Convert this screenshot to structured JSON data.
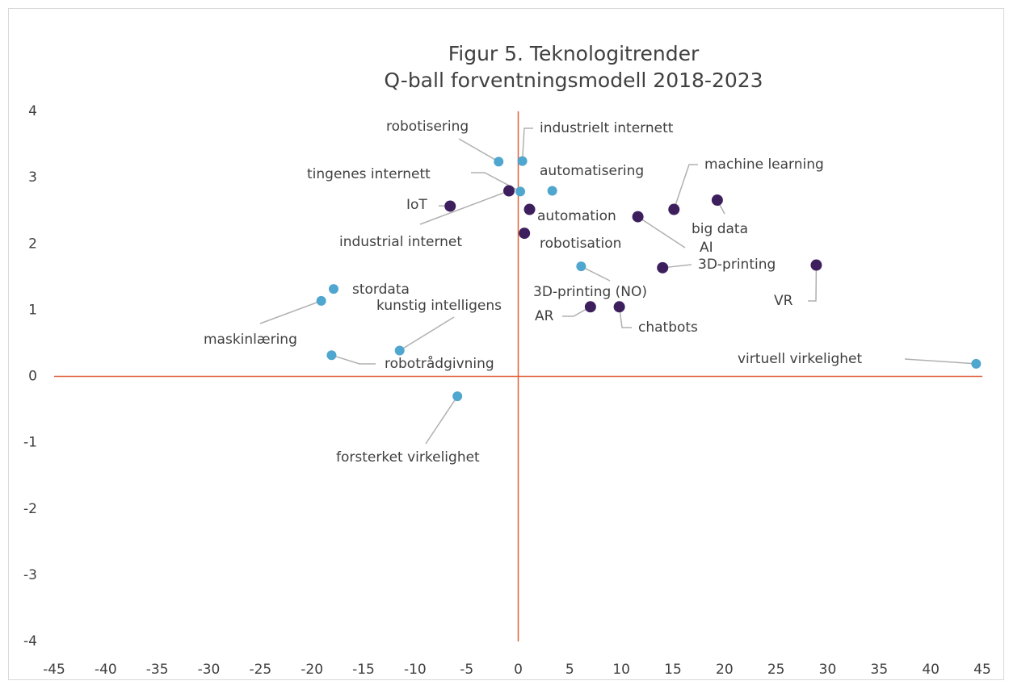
{
  "chart_data": {
    "type": "scatter",
    "title": "Figur 5. Teknologitrender",
    "subtitle": "Q-ball forventningsmodell 2018-2023",
    "xlim": [
      -45,
      45
    ],
    "xticks": [
      -45,
      -40,
      -35,
      -30,
      -25,
      -20,
      -15,
      -10,
      -5,
      0,
      5,
      10,
      15,
      20,
      25,
      30,
      35,
      40,
      45
    ],
    "ylim": [
      -4,
      4
    ],
    "yticks": [
      -4,
      -3,
      -2,
      -1,
      0,
      1,
      2,
      3,
      4
    ],
    "axis_color": "#e0603a",
    "series": [
      {
        "color": "#4fa6cf",
        "labels": [
          "robotisering",
          "industrielt internett",
          "automatisering",
          "tingenes internett",
          "stordata",
          "maskinlæring",
          "kunstig intelligens",
          "robotrådgivning",
          "forsterket virkelighet",
          "3D-printing (NO)",
          "virtuell virkelighet"
        ],
        "x": [
          -1.9,
          0.4,
          3.3,
          0.2,
          -17.9,
          -19.1,
          -11.5,
          -18.1,
          -5.9,
          6.1,
          44.4
        ],
        "values": [
          3.24,
          3.25,
          2.8,
          2.79,
          1.32,
          1.14,
          0.39,
          0.32,
          -0.3,
          1.66,
          0.19
        ]
      },
      {
        "color": "#3d1f5e",
        "labels": [
          "IoT",
          "industrial internet",
          "automation",
          "robotisation",
          "AI",
          "machine learning",
          "big data",
          "3D-printing",
          "VR",
          "AR",
          "chatbots"
        ],
        "x": [
          -6.6,
          -0.9,
          1.1,
          0.6,
          11.6,
          15.1,
          19.3,
          14.0,
          28.9,
          7.0,
          9.8
        ],
        "values": [
          2.57,
          2.8,
          2.52,
          2.16,
          2.41,
          2.52,
          2.66,
          1.64,
          1.68,
          1.05,
          1.05
        ]
      }
    ]
  }
}
